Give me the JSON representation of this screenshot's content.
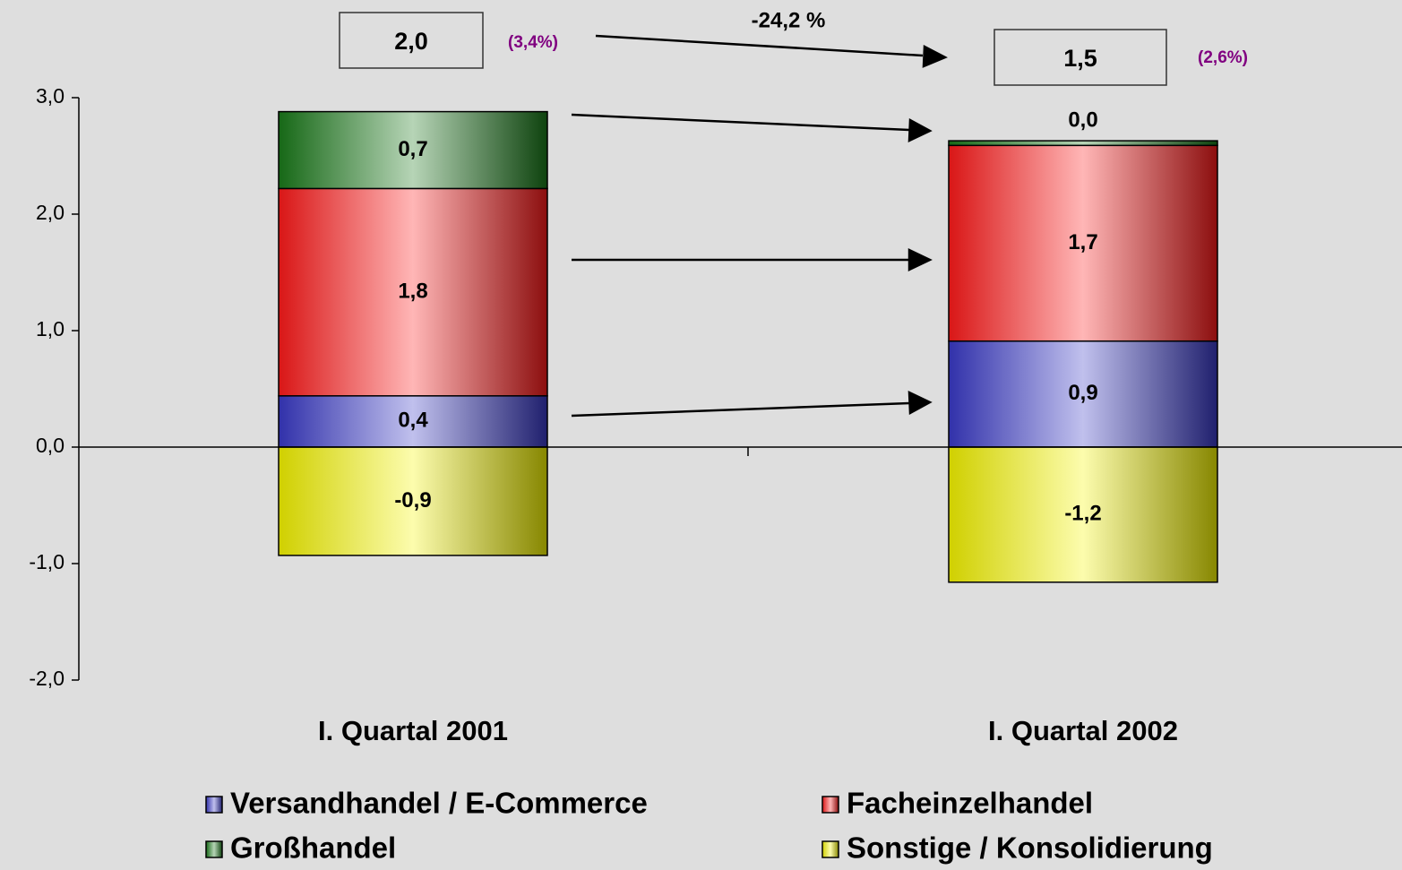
{
  "chart_data": {
    "type": "stacked-bar",
    "categories": [
      "I. Quartal 2001",
      "I. Quartal 2002"
    ],
    "series": [
      {
        "name": "Versandhandel / E-Commerce",
        "color": "#3a3ac8",
        "values": [
          0.44,
          0.91
        ],
        "value_labels": [
          "0,4",
          "0,9"
        ]
      },
      {
        "name": "Facheinzelhandel",
        "color": "#ff1a1a",
        "values": [
          1.78,
          1.68
        ],
        "value_labels": [
          "1,8",
          "1,7"
        ]
      },
      {
        "name": "Großhandel",
        "color": "#1a7a1a",
        "values": [
          0.66,
          0.04
        ],
        "value_labels": [
          "0,7",
          "0,0"
        ]
      },
      {
        "name": "Sonstige / Konsolidierung",
        "color": "#f5f500",
        "values": [
          -0.93,
          -1.16
        ],
        "value_labels": [
          "-0,9",
          "-1,2"
        ]
      }
    ],
    "ylim": [
      -2,
      3
    ],
    "yticks": [
      {
        "value": -2,
        "label": "-2,0"
      },
      {
        "value": -1,
        "label": "-1,0"
      },
      {
        "value": 0,
        "label": "0,0"
      },
      {
        "value": 1,
        "label": "1,0"
      },
      {
        "value": 2,
        "label": "2,0"
      },
      {
        "value": 3,
        "label": "3,0"
      }
    ],
    "annotations": {
      "totals": [
        {
          "label": "2,0",
          "share": "(3,4%)"
        },
        {
          "label": "1,5",
          "share": "(2,6%)"
        }
      ],
      "change": "-24,2 %"
    },
    "legend": "bottom"
  }
}
